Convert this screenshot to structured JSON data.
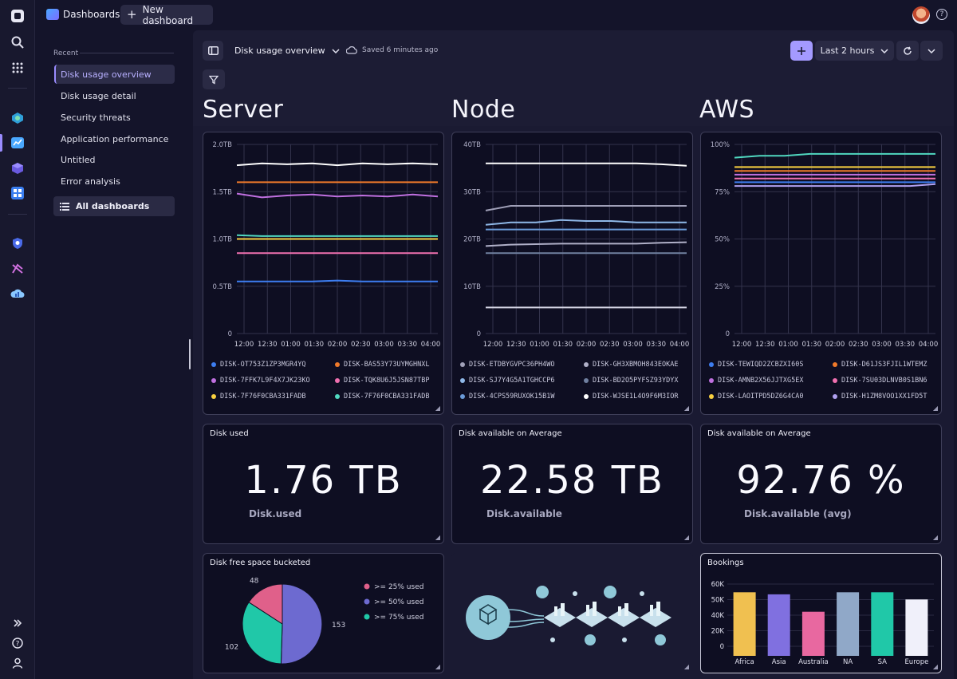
{
  "app": {
    "title": "Dashboards",
    "new_dashboard": "New dashboard"
  },
  "sidebar": {
    "recent_label": "Recent",
    "items": [
      {
        "label": "Disk usage overview",
        "active": true
      },
      {
        "label": "Disk usage detail"
      },
      {
        "label": "Security threats"
      },
      {
        "label": "Application performance"
      },
      {
        "label": "Untitled"
      },
      {
        "label": "Error analysis"
      }
    ],
    "all_dashboards": "All dashboards"
  },
  "toolbar": {
    "dashboard_name": "Disk usage overview",
    "saved_status": "Saved 6 minutes ago",
    "timeframe": "Last 2 hours"
  },
  "sections": [
    "Server",
    "Node",
    "AWS"
  ],
  "colors": {
    "accent": "#9a8cff"
  },
  "chart_data": [
    {
      "type": "line",
      "section": "Server",
      "y_ticks": [
        "2.0TB",
        "1.5TB",
        "1.0TB",
        "0.5TB",
        "0"
      ],
      "ylim": [
        0,
        2.0
      ],
      "x_ticks": [
        "12:00",
        "12:30",
        "01:00",
        "01:30",
        "02:00",
        "02:30",
        "03:00",
        "03:30",
        "04:00"
      ],
      "series": [
        {
          "name": "DISK-OT753Z1ZP3MGR4YQ",
          "color": "#3d7df0",
          "values": [
            0.55,
            0.55,
            0.55,
            0.55,
            0.56,
            0.55,
            0.55,
            0.55,
            0.55
          ]
        },
        {
          "name": "DISK-BAS53Y73UYMGHNXL",
          "color": "#f07a2a",
          "values": [
            1.6,
            1.6,
            1.6,
            1.6,
            1.6,
            1.6,
            1.6,
            1.6,
            1.6
          ]
        },
        {
          "name": "DISK-7FFK7L9F4X7JK23KO",
          "color": "#c070e0",
          "values": [
            1.48,
            1.44,
            1.46,
            1.47,
            1.45,
            1.46,
            1.45,
            1.47,
            1.45
          ]
        },
        {
          "name": "DISK-TQK8U6J5JSN87TBP",
          "color": "#f070b0",
          "values": [
            0.85,
            0.85,
            0.85,
            0.85,
            0.85,
            0.85,
            0.85,
            0.85,
            0.85
          ]
        },
        {
          "name": "DISK-7F76F0CBA331FADB",
          "color": "#f8d040",
          "values": [
            1.0,
            1.0,
            1.0,
            1.0,
            1.0,
            1.0,
            1.0,
            1.0,
            1.0
          ]
        },
        {
          "name": "DISK-7F76F0CBA331FADB",
          "color": "#50d8c0",
          "values": [
            1.04,
            1.03,
            1.03,
            1.03,
            1.03,
            1.03,
            1.03,
            1.03,
            1.03
          ]
        },
        {
          "name": "",
          "color": "#ffffff",
          "values": [
            1.78,
            1.8,
            1.79,
            1.8,
            1.78,
            1.8,
            1.79,
            1.8,
            1.79
          ]
        }
      ]
    },
    {
      "type": "line",
      "section": "Node",
      "y_ticks": [
        "40TB",
        "30TB",
        "20TB",
        "10TB",
        "0"
      ],
      "ylim": [
        0,
        40
      ],
      "x_ticks": [
        "12:00",
        "12:30",
        "01:00",
        "01:30",
        "02:00",
        "02:30",
        "03:00",
        "03:30",
        "04:00"
      ],
      "series": [
        {
          "name": "DISK-ETDBYGVPC36PH4WO",
          "color": "#a0a0b8",
          "values": [
            26,
            27,
            27,
            27,
            27,
            27,
            27,
            27,
            27
          ]
        },
        {
          "name": "DISK-GH3XBMOH843EOKAE",
          "color": "#b0b0c8",
          "values": [
            18.5,
            18.8,
            18.9,
            19,
            19,
            19,
            19,
            19.2,
            19.3
          ]
        },
        {
          "name": "DISK-SJ7Y4G5A1TGHCCP6",
          "color": "#8fb8e8",
          "values": [
            23,
            23.5,
            23.5,
            24,
            23.8,
            23.8,
            23.5,
            23.5,
            23.5
          ]
        },
        {
          "name": "DISK-BD2O5PYFSZ93YDYX",
          "color": "#7080a0",
          "values": [
            17,
            17,
            17,
            17,
            17,
            17,
            17,
            17,
            17
          ]
        },
        {
          "name": "DISK-4CPS59RUXOK15B1W",
          "color": "#6a9ad8",
          "values": [
            22,
            22,
            22,
            22,
            22,
            22,
            22,
            22,
            22
          ]
        },
        {
          "name": "DISK-WJSE1L4O9F6M3IOR",
          "color": "#ffffff",
          "values": [
            36,
            36,
            36,
            36,
            36,
            36,
            36,
            35.8,
            35.5
          ]
        },
        {
          "name": "",
          "color": "#d8d8e8",
          "values": [
            5.5,
            5.5,
            5.5,
            5.5,
            5.5,
            5.5,
            5.5,
            5.5,
            5.5
          ]
        }
      ]
    },
    {
      "type": "line",
      "section": "AWS",
      "y_ticks": [
        "100%",
        "75%",
        "50%",
        "25%",
        "0"
      ],
      "ylim": [
        0,
        100
      ],
      "x_ticks": [
        "12:00",
        "12:30",
        "01:00",
        "01:30",
        "02:00",
        "02:30",
        "03:00",
        "03:30",
        "04:00"
      ],
      "series": [
        {
          "name": "DISK-TEWIQD2ZCBZXI60S",
          "color": "#3d7df0",
          "values": [
            80,
            80,
            80,
            80,
            80,
            80,
            80,
            80,
            80
          ]
        },
        {
          "name": "DISK-D61JS3FJIL1WTEMZ",
          "color": "#f07a2a",
          "values": [
            86,
            86,
            86,
            86,
            86,
            86,
            86,
            86,
            86
          ]
        },
        {
          "name": "DISK-AMNB2X56JJTXG5EX",
          "color": "#c070e0",
          "values": [
            84,
            84,
            84,
            84,
            84,
            84,
            84,
            84,
            84
          ]
        },
        {
          "name": "DISK-7SU03DLNVB0S1BN6",
          "color": "#f070b0",
          "values": [
            82,
            82,
            82,
            82,
            82,
            82,
            82,
            82,
            82
          ]
        },
        {
          "name": "DISK-LAOITPD5DZ6G4CA0",
          "color": "#f8d040",
          "values": [
            88,
            88,
            88,
            88,
            88,
            88,
            88,
            88,
            88
          ]
        },
        {
          "name": "DISK-H1ZM8VOO1XX1FD5T",
          "color": "#b0a0f0",
          "values": [
            78,
            78,
            78,
            78,
            78,
            78,
            78,
            78,
            79
          ]
        },
        {
          "name": "",
          "color": "#50d8c0",
          "values": [
            93,
            94,
            94,
            95,
            95,
            95,
            95,
            95,
            95
          ]
        }
      ]
    },
    {
      "type": "pie",
      "title": "Disk free space bucketed",
      "slices": [
        {
          "label": ">= 25% used",
          "value": 48,
          "color": "#e0608a"
        },
        {
          "label": ">= 50% used",
          "value": 153,
          "color": "#6d6ad0"
        },
        {
          "label": ">= 75% used",
          "value": 102,
          "color": "#20c8a8"
        }
      ]
    },
    {
      "type": "bar",
      "title": "Bookings",
      "categories": [
        "Africa",
        "Asia",
        "Australia",
        "NA",
        "SA",
        "Europe"
      ],
      "values": [
        62,
        60,
        43,
        62,
        62,
        55
      ],
      "colors": [
        "#f0c050",
        "#8070e0",
        "#e868a0",
        "#90a8c8",
        "#20c8a8",
        "#f0f0fa"
      ],
      "y_ticks": [
        "60K",
        "50K",
        "40K",
        "20K",
        "0"
      ],
      "ylim": [
        0,
        70
      ]
    }
  ],
  "metrics": [
    {
      "title": "Disk used",
      "value": "1.76 TB",
      "label": "Disk.used"
    },
    {
      "title": "Disk available on Average",
      "value": "22.58 TB",
      "label": "Disk.available"
    },
    {
      "title": "Disk available on Average",
      "value": "92.76 %",
      "label": "Disk.available (avg)"
    }
  ]
}
